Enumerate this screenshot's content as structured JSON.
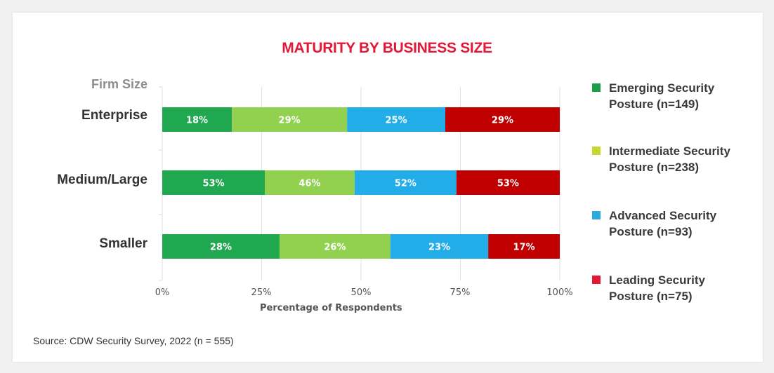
{
  "chart_data": {
    "type": "bar",
    "orientation": "horizontal",
    "stacked": true,
    "title": "MATURITY BY BUSINESS SIZE",
    "ylabel": "Firm Size",
    "xlabel": "Percentage of Respondents",
    "xlim": [
      0,
      100
    ],
    "xticks": [
      "0%",
      "25%",
      "50%",
      "75%",
      "100%"
    ],
    "grid": true,
    "legend_position": "right",
    "categories": [
      "Enterprise",
      "Medium/Large",
      "Smaller"
    ],
    "series": [
      {
        "name": "Emerging Security Posture (n=149)",
        "labels": [
          "18%",
          "53%",
          "28%"
        ],
        "values": [
          17.5,
          25.8,
          29.5
        ],
        "color": "#1fa84f",
        "legend_color": "#1a9e4a"
      },
      {
        "name": "Intermediate Security Posture (n=238)",
        "labels": [
          "29%",
          "46%",
          "26%"
        ],
        "values": [
          29.0,
          22.6,
          27.9
        ],
        "color": "#92d050",
        "legend_color": "#c4d82d"
      },
      {
        "name": "Advanced Security Posture (n=93)",
        "labels": [
          "25%",
          "52%",
          "23%"
        ],
        "values": [
          24.7,
          25.6,
          24.6
        ],
        "color": "#22ade9",
        "legend_color": "#29abe2"
      },
      {
        "name": "Leading Security Posture (n=75)",
        "labels": [
          "29%",
          "53%",
          "17%"
        ],
        "values": [
          28.8,
          26.0,
          18.0
        ],
        "color": "#c00000",
        "legend_color": "#e31837"
      }
    ]
  },
  "legend": [
    {
      "line1": "Emerging Security",
      "line2": "Posture (n=149)"
    },
    {
      "line1": "Intermediate Security",
      "line2": "Posture (n=238)"
    },
    {
      "line1": "Advanced Security",
      "line2": "Posture (n=93)"
    },
    {
      "line1": "Leading Security",
      "line2": "Posture (n=75)"
    }
  ],
  "source": "Source: CDW Security Survey, 2022 (n = 555)",
  "colors": {
    "title": "#e31837"
  }
}
